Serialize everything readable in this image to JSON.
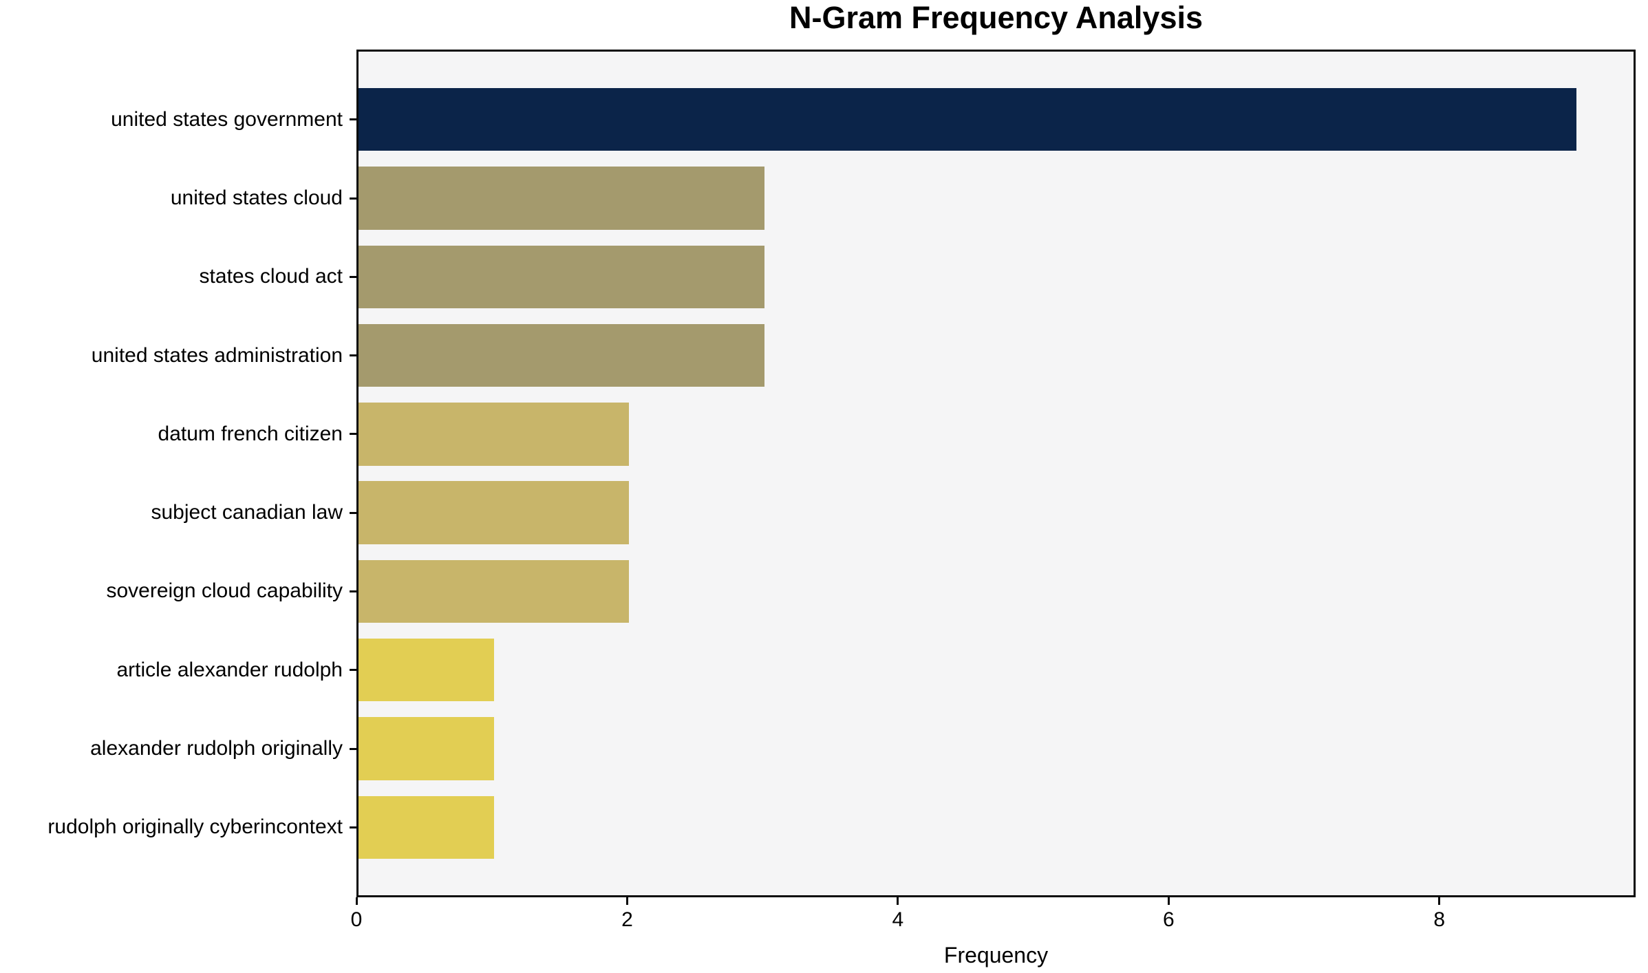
{
  "chart_data": {
    "type": "bar",
    "orientation": "horizontal",
    "title": "N-Gram Frequency Analysis",
    "xlabel": "Frequency",
    "ylabel": "",
    "categories": [
      "united states government",
      "united states cloud",
      "states cloud act",
      "united states administration",
      "datum french citizen",
      "subject canadian law",
      "sovereign cloud capability",
      "article alexander rudolph",
      "alexander rudolph originally",
      "rudolph originally cyberincontext"
    ],
    "values": [
      9,
      3,
      3,
      3,
      2,
      2,
      2,
      1,
      1,
      1
    ],
    "bar_colors": [
      "#0b2449",
      "#a49a6d",
      "#a49a6d",
      "#a49a6d",
      "#c8b56a",
      "#c8b56a",
      "#c8b56a",
      "#e2ce53",
      "#e2ce53",
      "#e2ce53"
    ],
    "xlim": [
      0,
      9.45
    ],
    "xticks": [
      0,
      2,
      4,
      6,
      8
    ],
    "grid": false,
    "legend_position": "none",
    "plot_background": "#f5f5f6",
    "figure_background": "#ffffff",
    "axis_color": "#0a0a0a"
  }
}
